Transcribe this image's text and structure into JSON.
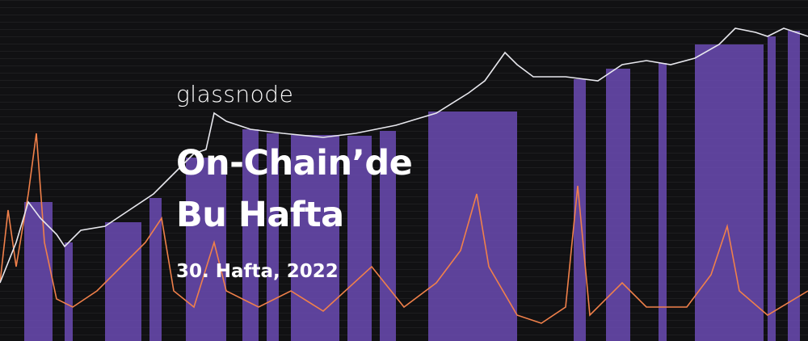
{
  "header": {
    "brand": "glassnode",
    "title_lines": [
      "On-Chain’de",
      "Bu Hafta"
    ],
    "subtitle": "30. Hafta, 2022"
  }
}
